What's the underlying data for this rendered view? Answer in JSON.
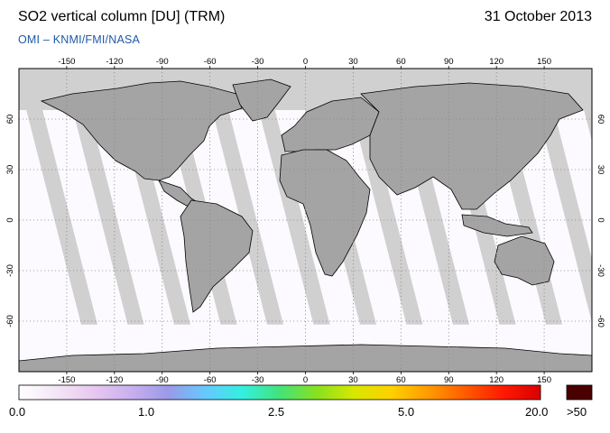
{
  "header": {
    "title": "SO2 vertical column [DU] (TRM)",
    "date": "31 October 2013",
    "credit": "OMI  –  KNMI/FMI/NASA"
  },
  "map": {
    "projection": "equirectangular",
    "lon_range": [
      -180,
      180
    ],
    "lat_range": [
      -90,
      90
    ],
    "lon_ticks": [
      -150,
      -120,
      -90,
      -60,
      -30,
      0,
      30,
      60,
      90,
      120,
      150
    ],
    "lat_ticks": [
      60,
      30,
      0,
      -30,
      -60
    ],
    "no_data_color": "#d0d0d0",
    "overlap_color": "#a8a8a8",
    "background_color": "#fdfaff",
    "gridlines": "dotted"
  },
  "colorbar": {
    "labels": [
      "0.0",
      "1.0",
      "2.5",
      "5.0",
      "20.0"
    ],
    "overflow_label": ">50",
    "overflow_color": "#4a0000",
    "colors": [
      "#ffffff",
      "#f4e6f7",
      "#e8c8f0",
      "#c9b0ee",
      "#9a9ae8",
      "#66c8ff",
      "#33f0e0",
      "#44e27a",
      "#88e020",
      "#d8e800",
      "#ffd000",
      "#ff9a00",
      "#ff5a00",
      "#ff1a00",
      "#d80000"
    ]
  }
}
